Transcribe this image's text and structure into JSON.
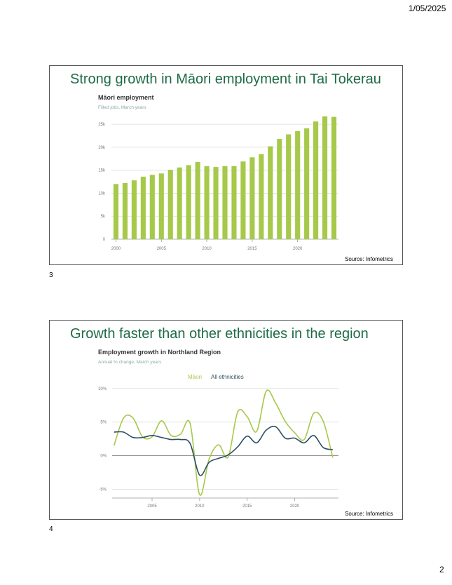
{
  "header": {
    "date": "1/05/2025"
  },
  "footer": {
    "page_number": "2"
  },
  "slides": [
    {
      "number": "3",
      "title": "Strong growth in Māori employment in Tai Tokerau",
      "source": "Source: Infometrics"
    },
    {
      "number": "4",
      "title": "Growth faster than other ethnicities in the region",
      "source": "Source: Infometrics"
    }
  ],
  "colors": {
    "title": "#1d6b46",
    "maori": "#a6c94a",
    "all": "#2e4f63",
    "grid": "#dddddd"
  },
  "chart_data": [
    {
      "type": "bar",
      "title": "Māori employment",
      "subtitle": "Filled jobs, March years",
      "x": [
        2000,
        2001,
        2002,
        2003,
        2004,
        2005,
        2006,
        2007,
        2008,
        2009,
        2010,
        2011,
        2012,
        2013,
        2014,
        2015,
        2016,
        2017,
        2018,
        2019,
        2020,
        2021,
        2022,
        2023,
        2024
      ],
      "values": [
        12000,
        12200,
        12800,
        13600,
        14000,
        14300,
        15100,
        15600,
        16100,
        16800,
        15900,
        15700,
        15900,
        15900,
        16900,
        17800,
        18500,
        20200,
        21800,
        22800,
        23500,
        24100,
        25600,
        26700,
        26600
      ],
      "ylim": [
        0,
        27000
      ],
      "yticks": [
        0,
        5000,
        10000,
        15000,
        20000,
        25000
      ],
      "yticklabels": [
        "0",
        "5k",
        "10k",
        "15k",
        "20k",
        "25k"
      ],
      "xticks": [
        2000,
        2005,
        2010,
        2015,
        2020
      ],
      "xticklabels": [
        "2000",
        "2005",
        "2010",
        "2015",
        "2020"
      ],
      "grid": true
    },
    {
      "type": "line",
      "title": "Employment growth in Northland Region",
      "subtitle": "Annual % change, March years",
      "legend_position": "top-center",
      "series": [
        {
          "name": "Māori",
          "x": [
            2001,
            2002,
            2003,
            2004,
            2005,
            2006,
            2007,
            2008,
            2009,
            2010,
            2011,
            2012,
            2013,
            2014,
            2015,
            2016,
            2017,
            2018,
            2019,
            2020,
            2021,
            2022,
            2023,
            2024
          ],
          "values": [
            1.5,
            5.6,
            5.6,
            2.8,
            2.8,
            5.2,
            3.0,
            3.2,
            4.8,
            -5.8,
            -0.5,
            1.6,
            -0.2,
            6.5,
            5.8,
            3.6,
            9.6,
            7.8,
            5.1,
            3.4,
            2.4,
            6.3,
            5.1,
            -0.3
          ]
        },
        {
          "name": "All ethnicities",
          "x": [
            2001,
            2002,
            2003,
            2004,
            2005,
            2006,
            2007,
            2008,
            2009,
            2010,
            2011,
            2012,
            2013,
            2014,
            2015,
            2016,
            2017,
            2018,
            2019,
            2020,
            2021,
            2022,
            2023,
            2024
          ],
          "values": [
            3.5,
            3.5,
            2.7,
            2.7,
            3.0,
            2.7,
            2.4,
            2.4,
            1.8,
            -2.9,
            -1.0,
            -0.4,
            0.1,
            1.3,
            2.9,
            1.9,
            3.8,
            4.3,
            2.6,
            2.6,
            1.9,
            3.0,
            1.2,
            0.9
          ]
        }
      ],
      "ylim": [
        -6,
        10.5
      ],
      "yticks": [
        -5,
        0,
        5,
        10
      ],
      "yticklabels": [
        "-5%",
        "0%",
        "5%",
        "10%"
      ],
      "xlim": [
        2000.8,
        2024.6
      ],
      "xticks": [
        2005,
        2010,
        2015,
        2020
      ],
      "xticklabels": [
        "2005",
        "2010",
        "2015",
        "2020"
      ],
      "grid": true
    }
  ]
}
